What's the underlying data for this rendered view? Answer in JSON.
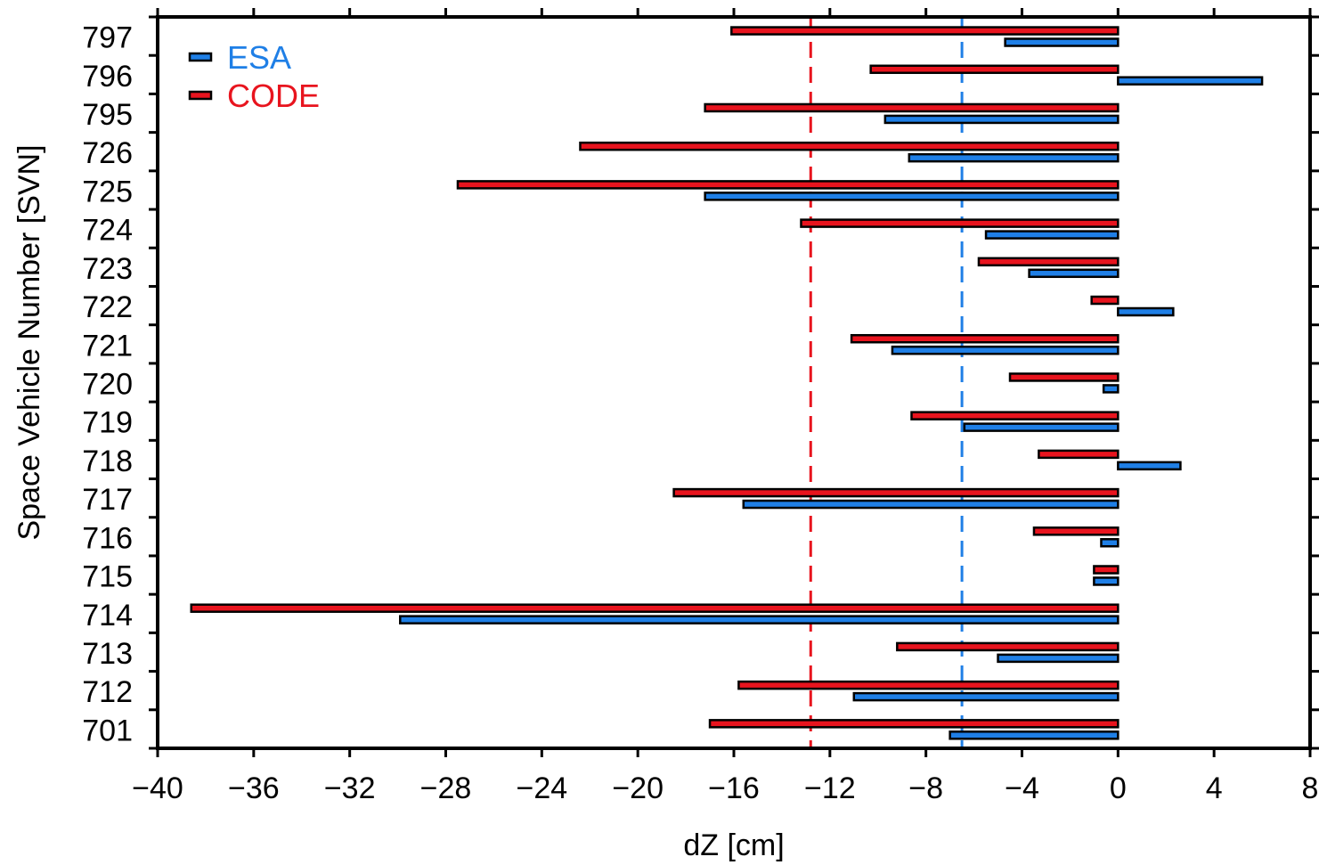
{
  "chart_data": {
    "type": "bar",
    "orientation": "horizontal",
    "xlabel": "dZ [cm]",
    "ylabel": "Space Vehicle Number [SVN]",
    "xlim": [
      -40,
      8
    ],
    "xticks": [
      -40,
      -36,
      -32,
      -28,
      -24,
      -20,
      -16,
      -12,
      -8,
      -4,
      0,
      4,
      8
    ],
    "xtick_labels": [
      "−40",
      "−36",
      "−32",
      "−28",
      "−24",
      "−20",
      "−16",
      "−12",
      "−8",
      "−4",
      "0",
      "4",
      "8"
    ],
    "categories": [
      "797",
      "796",
      "795",
      "726",
      "725",
      "724",
      "723",
      "722",
      "721",
      "720",
      "719",
      "718",
      "717",
      "716",
      "715",
      "714",
      "713",
      "712",
      "701"
    ],
    "series": [
      {
        "name": "CODE",
        "color": "#e8141e",
        "values": [
          -16.1,
          -10.3,
          -17.2,
          -22.4,
          -27.5,
          -13.2,
          -5.8,
          -1.1,
          -11.1,
          -4.5,
          -8.6,
          -3.3,
          -18.5,
          -3.5,
          -1.0,
          -38.6,
          -9.2,
          -15.8,
          -17.0
        ]
      },
      {
        "name": "ESA",
        "color": "#1f7fe6",
        "values": [
          -4.7,
          6.0,
          -9.7,
          -8.7,
          -17.2,
          -5.5,
          -3.7,
          2.3,
          -9.4,
          -0.6,
          -6.4,
          2.6,
          -15.6,
          -0.7,
          -1.0,
          -29.9,
          -5.0,
          -11.0,
          -7.0
        ]
      }
    ],
    "reference_lines": [
      {
        "series": "CODE",
        "x": -12.8,
        "color": "#e8141e",
        "style": "dashed"
      },
      {
        "series": "ESA",
        "x": -6.5,
        "color": "#1f7fe6",
        "style": "dashed"
      }
    ],
    "legend": {
      "position": "top-left",
      "entries": [
        {
          "label": "ESA",
          "color": "#1f7fe6"
        },
        {
          "label": "CODE",
          "color": "#e8141e"
        }
      ]
    },
    "grid": false
  }
}
